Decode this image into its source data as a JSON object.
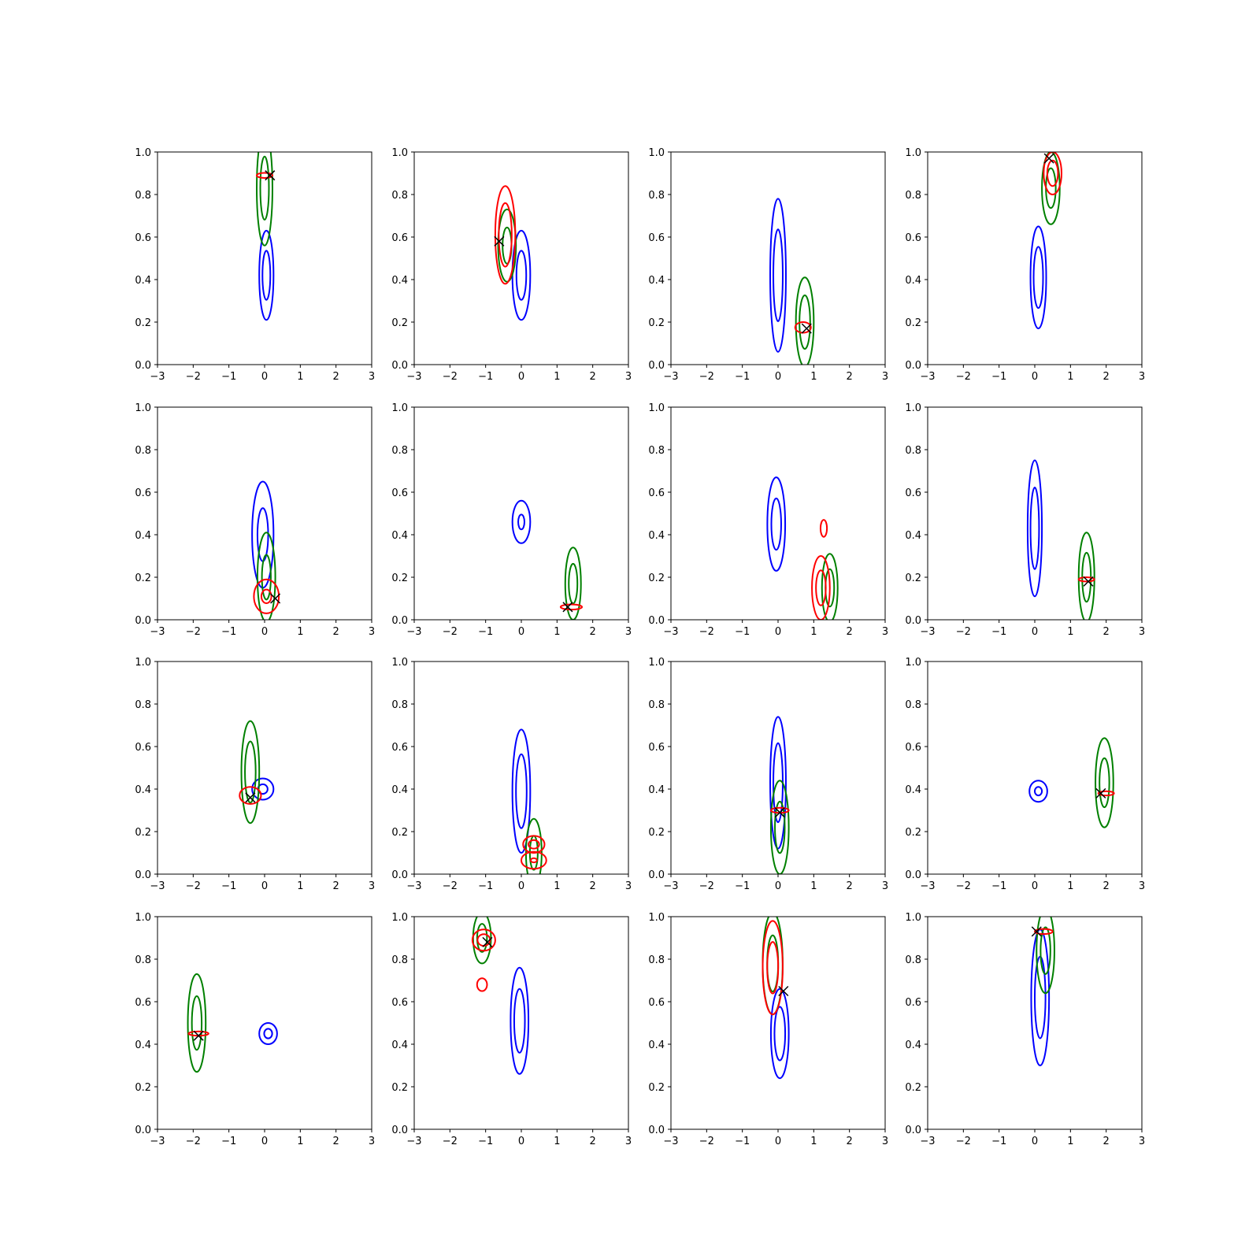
{
  "chart_data": {
    "type": "contour",
    "layout": {
      "rows": 4,
      "cols": 4
    },
    "colors": {
      "blue": "#0000ff",
      "green": "#008000",
      "red": "#ff0000",
      "marker": "#000000"
    },
    "xlim": [
      -3,
      3
    ],
    "ylim": [
      0,
      1
    ],
    "xticks": [
      -3,
      -2,
      -1,
      0,
      1,
      2,
      3
    ],
    "yticks": [
      0.0,
      0.2,
      0.4,
      0.6,
      0.8,
      1.0
    ],
    "xtick_labels": [
      "−3",
      "−2",
      "−1",
      "0",
      "1",
      "2",
      "3"
    ],
    "ytick_labels": [
      "0.0",
      "0.2",
      "0.4",
      "0.6",
      "0.8",
      "1.0"
    ],
    "panels": [
      {
        "blue": [
          {
            "cx": 0.05,
            "cy": 0.42,
            "rx": 0.2,
            "ry": 0.21,
            "inner": 0.55
          }
        ],
        "green": [
          {
            "cx": 0.0,
            "cy": 0.83,
            "rx": 0.22,
            "ry": 0.27,
            "inner": 0.55
          }
        ],
        "red": [
          {
            "cx": 0.0,
            "cy": 0.89,
            "rx": 0.22,
            "ry": 0.012,
            "inner": 0
          }
        ],
        "marker": {
          "x": 0.15,
          "y": 0.89
        }
      },
      {
        "blue": [
          {
            "cx": 0.0,
            "cy": 0.42,
            "rx": 0.25,
            "ry": 0.21,
            "inner": 0.55
          }
        ],
        "green": [
          {
            "cx": -0.4,
            "cy": 0.56,
            "rx": 0.25,
            "ry": 0.17,
            "inner": 0.5
          }
        ],
        "red": [
          {
            "cx": -0.45,
            "cy": 0.61,
            "rx": 0.28,
            "ry": 0.23,
            "inner": 0.65
          }
        ],
        "marker": {
          "x": -0.62,
          "y": 0.58
        }
      },
      {
        "blue": [
          {
            "cx": 0.0,
            "cy": 0.42,
            "rx": 0.22,
            "ry": 0.36,
            "inner": 0.6
          }
        ],
        "green": [
          {
            "cx": 0.75,
            "cy": 0.2,
            "rx": 0.25,
            "ry": 0.21,
            "inner": 0.6
          }
        ],
        "red": [
          {
            "cx": 0.7,
            "cy": 0.175,
            "rx": 0.22,
            "ry": 0.025,
            "inner": 0
          }
        ],
        "marker": {
          "x": 0.8,
          "y": 0.17
        }
      },
      {
        "blue": [
          {
            "cx": 0.1,
            "cy": 0.41,
            "rx": 0.22,
            "ry": 0.24,
            "inner": 0.6
          }
        ],
        "green": [
          {
            "cx": 0.45,
            "cy": 0.83,
            "rx": 0.25,
            "ry": 0.17,
            "inner": 0.55
          }
        ],
        "red": [
          {
            "cx": 0.5,
            "cy": 0.9,
            "rx": 0.25,
            "ry": 0.1,
            "inner": 0.6
          }
        ],
        "marker": {
          "x": 0.4,
          "y": 0.97
        }
      },
      {
        "blue": [
          {
            "cx": -0.05,
            "cy": 0.4,
            "rx": 0.3,
            "ry": 0.25,
            "inner": 0.5
          }
        ],
        "green": [
          {
            "cx": 0.05,
            "cy": 0.2,
            "rx": 0.25,
            "ry": 0.21,
            "inner": 0.5
          }
        ],
        "red": [
          {
            "cx": 0.05,
            "cy": 0.11,
            "rx": 0.35,
            "ry": 0.08,
            "inner": 0.4
          }
        ],
        "marker": {
          "x": 0.3,
          "y": 0.1
        }
      },
      {
        "blue": [
          {
            "cx": 0.0,
            "cy": 0.46,
            "rx": 0.25,
            "ry": 0.1,
            "inner": 0.35
          }
        ],
        "green": [
          {
            "cx": 1.45,
            "cy": 0.17,
            "rx": 0.22,
            "ry": 0.17,
            "inner": 0.55
          }
        ],
        "red": [
          {
            "cx": 1.4,
            "cy": 0.06,
            "rx": 0.3,
            "ry": 0.012,
            "inner": 0
          }
        ],
        "marker": {
          "x": 1.3,
          "y": 0.06
        }
      },
      {
        "blue": [
          {
            "cx": -0.05,
            "cy": 0.45,
            "rx": 0.25,
            "ry": 0.22,
            "inner": 0.55
          }
        ],
        "green": [
          {
            "cx": 1.45,
            "cy": 0.15,
            "rx": 0.22,
            "ry": 0.16,
            "inner": 0.55
          }
        ],
        "red": [
          {
            "cx": 1.2,
            "cy": 0.15,
            "rx": 0.25,
            "ry": 0.15,
            "inner": 0.55
          },
          {
            "cx": 1.28,
            "cy": 0.43,
            "rx": 0.09,
            "ry": 0.04,
            "inner": 0
          }
        ],
        "marker": null
      },
      {
        "blue": [
          {
            "cx": 0.0,
            "cy": 0.43,
            "rx": 0.2,
            "ry": 0.32,
            "inner": 0.6
          }
        ],
        "green": [
          {
            "cx": 1.45,
            "cy": 0.2,
            "rx": 0.22,
            "ry": 0.21,
            "inner": 0.55
          }
        ],
        "red": [
          {
            "cx": 1.45,
            "cy": 0.19,
            "rx": 0.22,
            "ry": 0.01,
            "inner": 0
          }
        ],
        "marker": {
          "x": 1.5,
          "y": 0.18
        }
      },
      {
        "blue": [
          {
            "cx": -0.05,
            "cy": 0.4,
            "rx": 0.3,
            "ry": 0.05,
            "inner": 0.45
          }
        ],
        "green": [
          {
            "cx": -0.4,
            "cy": 0.48,
            "rx": 0.25,
            "ry": 0.24,
            "inner": 0.6
          }
        ],
        "red": [
          {
            "cx": -0.4,
            "cy": 0.37,
            "rx": 0.3,
            "ry": 0.04,
            "inner": 0
          }
        ],
        "marker": {
          "x": -0.4,
          "y": 0.36
        }
      },
      {
        "blue": [
          {
            "cx": 0.0,
            "cy": 0.39,
            "rx": 0.25,
            "ry": 0.29,
            "inner": 0.6
          }
        ],
        "green": [
          {
            "cx": 0.35,
            "cy": 0.1,
            "rx": 0.22,
            "ry": 0.16,
            "inner": 0.5
          }
        ],
        "red": [
          {
            "cx": 0.35,
            "cy": 0.14,
            "rx": 0.3,
            "ry": 0.04,
            "inner": 0.5
          },
          {
            "cx": 0.35,
            "cy": 0.065,
            "rx": 0.35,
            "ry": 0.04,
            "inner": 0.25
          }
        ],
        "marker": null
      },
      {
        "blue": [
          {
            "cx": 0.0,
            "cy": 0.43,
            "rx": 0.22,
            "ry": 0.31,
            "inner": 0.6
          }
        ],
        "green": [
          {
            "cx": 0.05,
            "cy": 0.22,
            "rx": 0.25,
            "ry": 0.22,
            "inner": 0.55
          }
        ],
        "red": [
          {
            "cx": 0.05,
            "cy": 0.3,
            "rx": 0.25,
            "ry": 0.012,
            "inner": 0
          }
        ],
        "marker": {
          "x": 0.05,
          "y": 0.29
        }
      },
      {
        "blue": [
          {
            "cx": 0.1,
            "cy": 0.39,
            "rx": 0.25,
            "ry": 0.05,
            "inner": 0.4
          }
        ],
        "green": [
          {
            "cx": 1.95,
            "cy": 0.43,
            "rx": 0.25,
            "ry": 0.21,
            "inner": 0.55
          }
        ],
        "red": [
          {
            "cx": 2.0,
            "cy": 0.38,
            "rx": 0.22,
            "ry": 0.01,
            "inner": 0
          }
        ],
        "marker": {
          "x": 1.85,
          "y": 0.38
        }
      },
      {
        "blue": [
          {
            "cx": 0.1,
            "cy": 0.45,
            "rx": 0.25,
            "ry": 0.05,
            "inner": 0.45
          }
        ],
        "green": [
          {
            "cx": -1.9,
            "cy": 0.5,
            "rx": 0.25,
            "ry": 0.23,
            "inner": 0.55
          }
        ],
        "red": [
          {
            "cx": -1.85,
            "cy": 0.45,
            "rx": 0.28,
            "ry": 0.01,
            "inner": 0
          }
        ],
        "marker": {
          "x": -1.85,
          "y": 0.44
        }
      },
      {
        "blue": [
          {
            "cx": -0.05,
            "cy": 0.51,
            "rx": 0.25,
            "ry": 0.25,
            "inner": 0.6
          }
        ],
        "green": [
          {
            "cx": -1.1,
            "cy": 0.9,
            "rx": 0.25,
            "ry": 0.12,
            "inner": 0.55
          }
        ],
        "red": [
          {
            "cx": -1.05,
            "cy": 0.89,
            "rx": 0.32,
            "ry": 0.05,
            "inner": 0.55
          },
          {
            "cx": -1.1,
            "cy": 0.68,
            "rx": 0.14,
            "ry": 0.03,
            "inner": 0
          }
        ],
        "marker": {
          "x": -0.95,
          "y": 0.88
        }
      },
      {
        "blue": [
          {
            "cx": 0.05,
            "cy": 0.45,
            "rx": 0.25,
            "ry": 0.21,
            "inner": 0.6
          }
        ],
        "green": [
          {
            "cx": -0.15,
            "cy": 0.78,
            "rx": 0.28,
            "ry": 0.24,
            "inner": 0.55
          }
        ],
        "red": [
          {
            "cx": -0.15,
            "cy": 0.76,
            "rx": 0.28,
            "ry": 0.22,
            "inner": 0.55
          }
        ],
        "marker": {
          "x": 0.15,
          "y": 0.65
        }
      },
      {
        "blue": [
          {
            "cx": 0.15,
            "cy": 0.62,
            "rx": 0.25,
            "ry": 0.32,
            "inner": 0.6
          }
        ],
        "green": [
          {
            "cx": 0.3,
            "cy": 0.84,
            "rx": 0.25,
            "ry": 0.2,
            "inner": 0.55
          }
        ],
        "red": [
          {
            "cx": 0.25,
            "cy": 0.93,
            "rx": 0.25,
            "ry": 0.012,
            "inner": 0
          }
        ],
        "marker": {
          "x": 0.05,
          "y": 0.93
        }
      }
    ]
  }
}
